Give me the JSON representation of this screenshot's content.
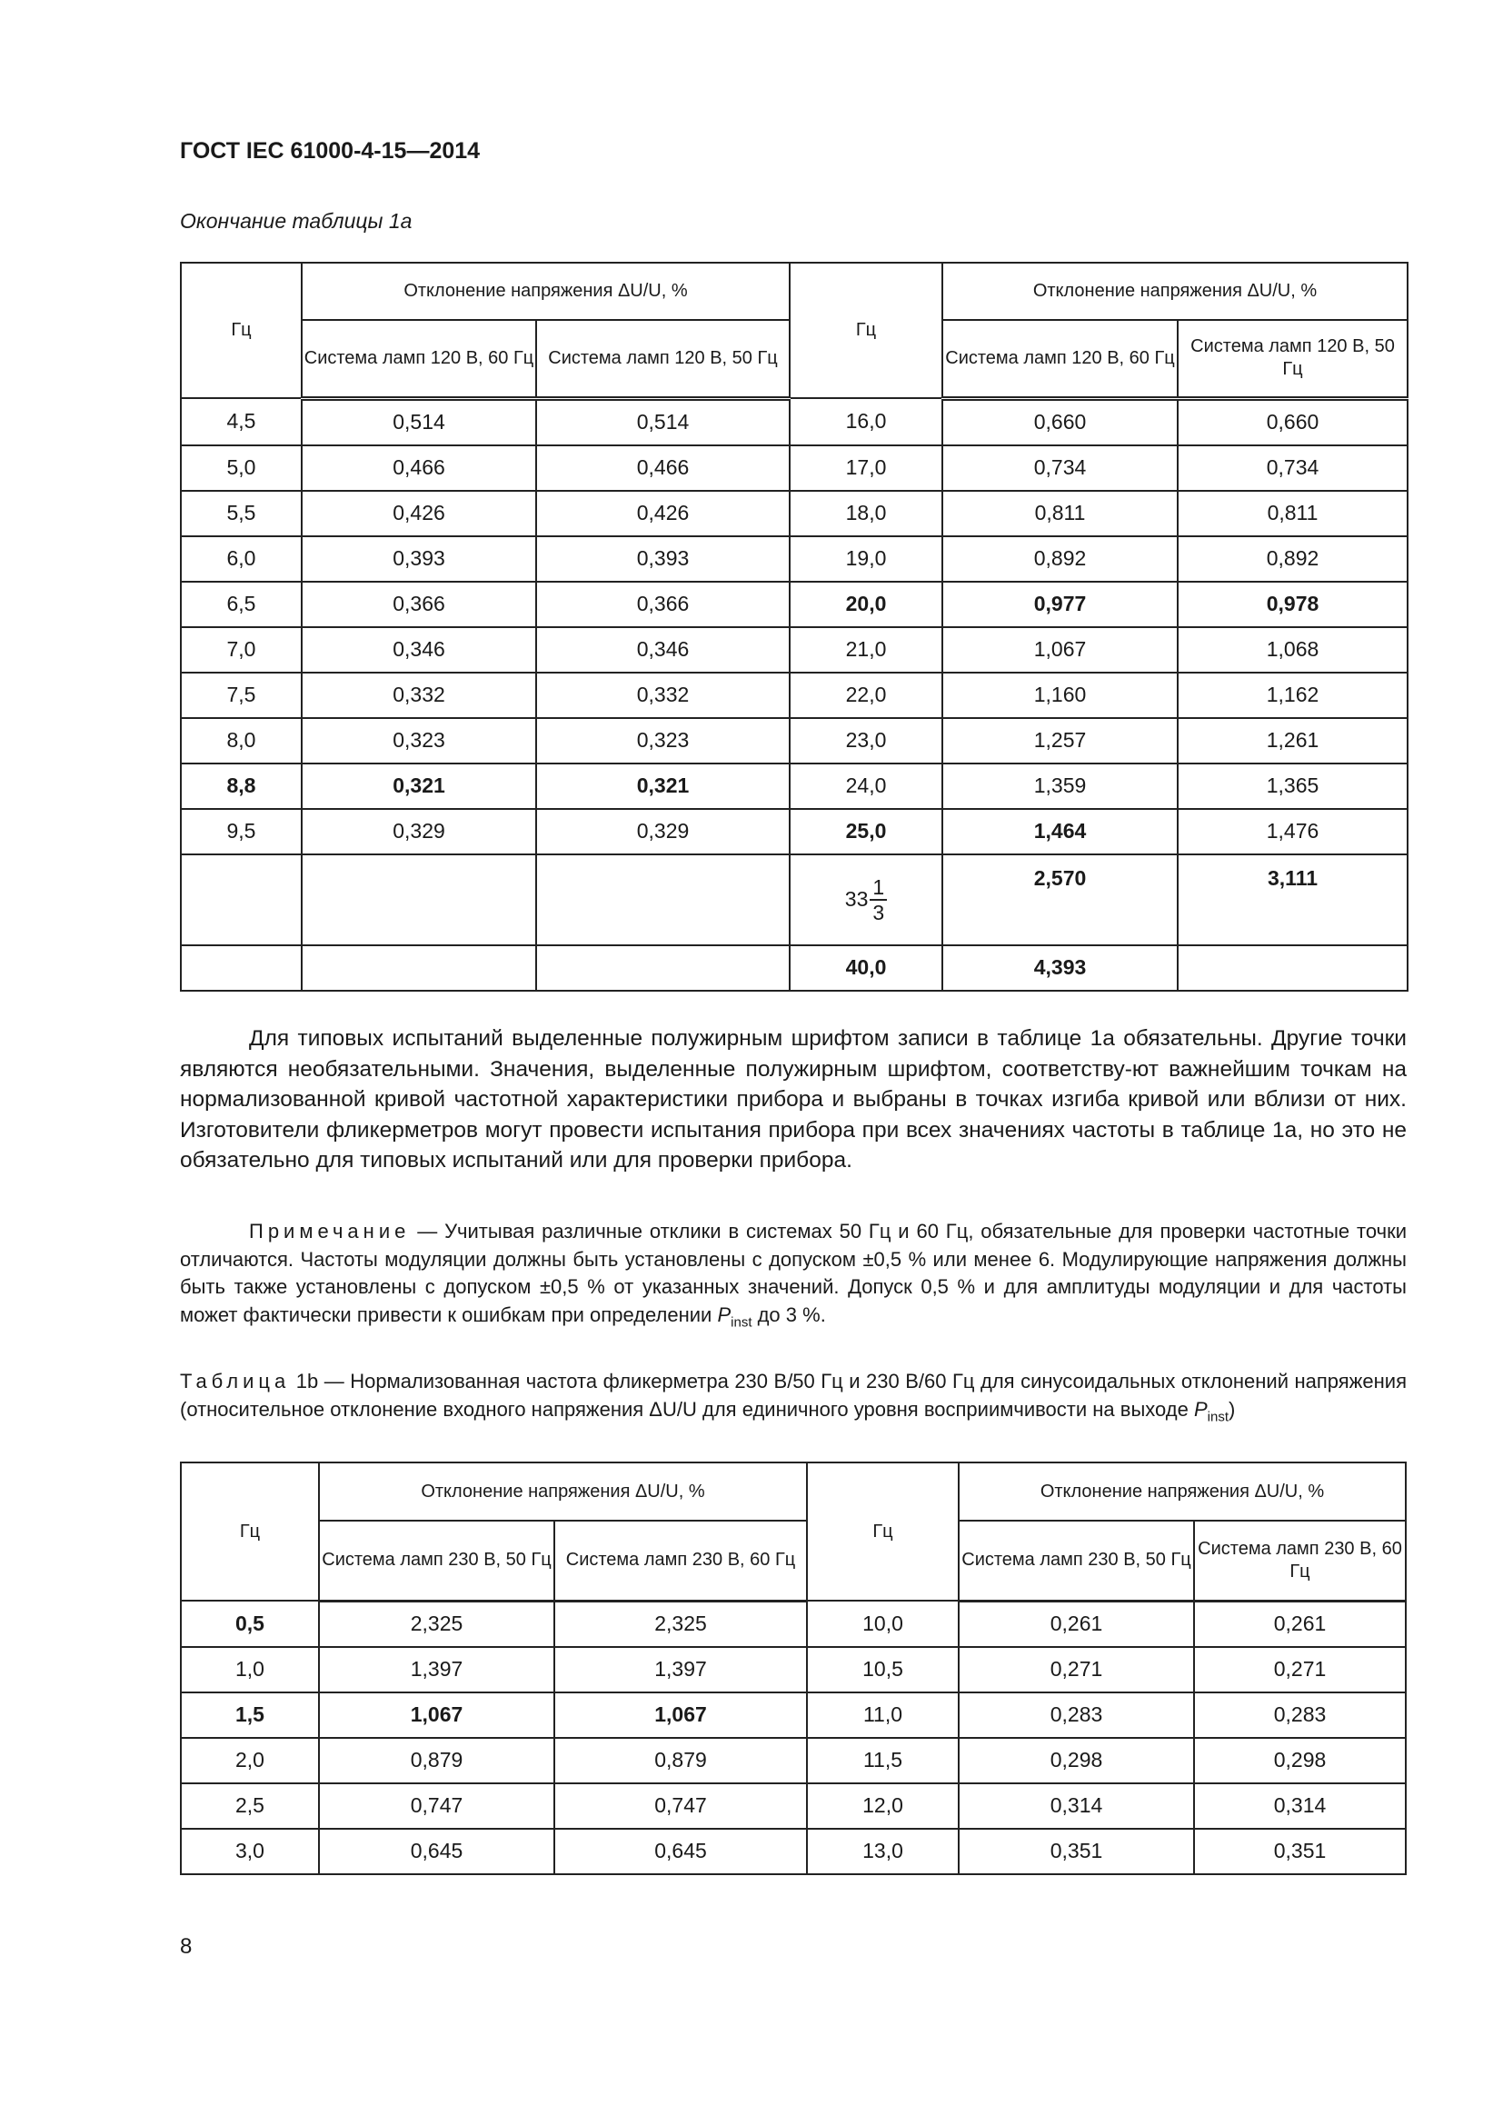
{
  "header": {
    "title": "ГОСТ IEC 61000-4-15—2014"
  },
  "table_1a": {
    "caption": "Окончание таблицы 1а",
    "col_hz": "Гц",
    "group_header": "Отклонение напряжения ΔU/U, %",
    "sub_headers": [
      "Система ламп 120 В, 60 Гц",
      "Система ламп 120 В, 50 Гц"
    ],
    "rows": [
      {
        "cells": [
          "4,5",
          "0,514",
          "0,514",
          "16,0",
          "0,660",
          "0,660"
        ],
        "bold": []
      },
      {
        "cells": [
          "5,0",
          "0,466",
          "0,466",
          "17,0",
          "0,734",
          "0,734"
        ],
        "bold": []
      },
      {
        "cells": [
          "5,5",
          "0,426",
          "0,426",
          "18,0",
          "0,811",
          "0,811"
        ],
        "bold": []
      },
      {
        "cells": [
          "6,0",
          "0,393",
          "0,393",
          "19,0",
          "0,892",
          "0,892"
        ],
        "bold": []
      },
      {
        "cells": [
          "6,5",
          "0,366",
          "0,366",
          "20,0",
          "0,977",
          "0,978"
        ],
        "bold": [
          3,
          4,
          5
        ]
      },
      {
        "cells": [
          "7,0",
          "0,346",
          "0,346",
          "21,0",
          "1,067",
          "1,068"
        ],
        "bold": []
      },
      {
        "cells": [
          "7,5",
          "0,332",
          "0,332",
          "22,0",
          "1,160",
          "1,162"
        ],
        "bold": []
      },
      {
        "cells": [
          "8,0",
          "0,323",
          "0,323",
          "23,0",
          "1,257",
          "1,261"
        ],
        "bold": []
      },
      {
        "cells": [
          "8,8",
          "0,321",
          "0,321",
          "24,0",
          "1,359",
          "1,365"
        ],
        "bold": [
          0,
          1,
          2
        ]
      },
      {
        "cells": [
          "9,5",
          "0,329",
          "0,329",
          "25,0",
          "1,464",
          "1,476"
        ],
        "bold": [
          3,
          4
        ]
      },
      {
        "cells": [
          "",
          "",
          "",
          {
            "whole": "33",
            "num": "1",
            "den": "3"
          },
          "2,570",
          "3,111"
        ],
        "bold": [
          4,
          5
        ],
        "tall": true
      },
      {
        "cells": [
          "",
          "",
          "",
          "40,0",
          "4,393",
          ""
        ],
        "bold": [
          3,
          4
        ]
      }
    ]
  },
  "paragraph": "Для типовых испытаний выделенные полужирным шрифтом записи в таблице 1а обязательны. Другие точки являются необязательными. Значения, выделенные полужирным шрифтом, соответству-ют важнейшим точкам на нормализованной кривой частотной характеристики прибора и выбраны в точках изгиба кривой или вблизи от них. Изготовители фликерметров могут провести испытания прибора при всех значениях частоты в таблице 1а, но это не обязательно для типовых испытаний или для проверки прибора.",
  "note": {
    "label": "Примечание",
    "text": " — Учитывая различные отклики в системах 50 Гц и 60 Гц, обязательные для проверки частотные точки отличаются. Частоты модуляции должны быть установлены с допуском ±0,5 % или менее 6. Модулирующие напряжения должны быть также установлены с допуском ±0,5 % от указанных значений. Допуск 0,5 % и для амплитуды модуляции и для частоты может фактически привести к ошибкам при определении ",
    "p": "P",
    "sub": "inst",
    "tail": " до 3 %."
  },
  "table_1b": {
    "caption_label": "Таблица",
    "caption_text": " 1b — Нормализованная частота фликерметра 230 В/50 Гц и 230 В/60 Гц для синусоидальных отклонений напряжения (относительное отклонение входного напряжения ΔU/U для единичного уровня восприимчивости на выходе ",
    "caption_p": "P",
    "caption_sub": "inst",
    "caption_tail": ")",
    "col_hz": "Гц",
    "group_header": "Отклонение напряжения ΔU/U, %",
    "sub_headers_left": [
      "Система ламп 230 В, 50 Гц",
      "Система ламп 230 В, 60 Гц"
    ],
    "sub_headers_right": [
      "Система ламп 230 В, 50 Гц",
      "Система ламп 230 В, 60 Гц"
    ],
    "rows": [
      {
        "cells": [
          "0,5",
          "2,325",
          "2,325",
          "10,0",
          "0,261",
          "0,261"
        ],
        "bold": [
          0
        ]
      },
      {
        "cells": [
          "1,0",
          "1,397",
          "1,397",
          "10,5",
          "0,271",
          "0,271"
        ],
        "bold": []
      },
      {
        "cells": [
          "1,5",
          "1,067",
          "1,067",
          "11,0",
          "0,283",
          "0,283"
        ],
        "bold": [
          0,
          1,
          2
        ]
      },
      {
        "cells": [
          "2,0",
          "0,879",
          "0,879",
          "11,5",
          "0,298",
          "0,298"
        ],
        "bold": []
      },
      {
        "cells": [
          "2,5",
          "0,747",
          "0,747",
          "12,0",
          "0,314",
          "0,314"
        ],
        "bold": []
      },
      {
        "cells": [
          "3,0",
          "0,645",
          "0,645",
          "13,0",
          "0,351",
          "0,351"
        ],
        "bold": []
      }
    ]
  },
  "page_number": "8"
}
